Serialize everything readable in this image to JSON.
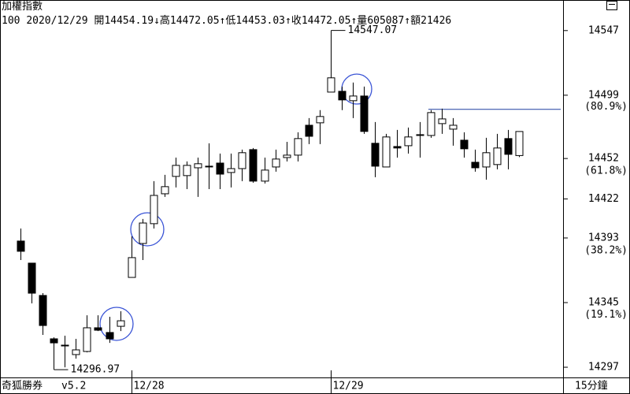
{
  "header": {
    "title": "加權指數",
    "code": "100",
    "date": "2020/12/29",
    "items": [
      {
        "label": "開",
        "value": 14454.19,
        "arrow": "↓"
      },
      {
        "label": "高",
        "value": 14472.05,
        "arrow": "↑"
      },
      {
        "label": "低",
        "value": 14453.03,
        "arrow": "↑"
      },
      {
        "label": "收",
        "value": 14472.05,
        "arrow": "↑"
      },
      {
        "label": "量",
        "value": 605087,
        "arrow": "↑"
      },
      {
        "label": "額",
        "value": 21426
      }
    ]
  },
  "footer": {
    "app": "奇狐勝券",
    "version": "v5.2",
    "period": "15分鐘"
  },
  "chart_data": {
    "type": "candlestick",
    "categories": [
      null,
      null,
      null,
      null,
      null,
      null,
      null,
      null,
      null,
      null,
      "12/28",
      null,
      null,
      null,
      null,
      null,
      null,
      null,
      null,
      null,
      null,
      null,
      null,
      null,
      null,
      null,
      null,
      null,
      "12/29",
      null,
      null,
      null,
      null,
      null,
      null,
      null,
      null,
      null,
      null,
      null,
      null,
      null,
      null,
      null,
      null,
      null
    ],
    "open": [
      14390.7,
      14374.3,
      14350.3,
      14318.1,
      14313.4,
      14306.4,
      14308.7,
      14326.3,
      14322.8,
      14327.4,
      14363.7,
      14388.9,
      14403.6,
      14425.8,
      14438.7,
      14439.3,
      14445.1,
      14446.3,
      14448.6,
      14441.6,
      14444.5,
      14458.6,
      14435.2,
      14445.7,
      14452.7,
      14454.5,
      14476.7,
      14478.5,
      14501.3,
      14501.9,
      14494.9,
      14498.4,
      14463.3,
      14445.7,
      14460.9,
      14461.5,
      14469.1,
      14469.1,
      14477.9,
      14473.8,
      14465.6,
      14449.2,
      14445.7,
      14447.5,
      14466.8,
      14454.19
    ],
    "high": [
      14400.0,
      14374.3,
      14352.0,
      14319.2,
      14320.4,
      14318.1,
      14335.6,
      14335.6,
      14334.5,
      14338.6,
      14394.2,
      14407.1,
      14435.2,
      14439.9,
      14452.7,
      14449.8,
      14452.7,
      14463.3,
      14455.7,
      14455.7,
      14458.6,
      14459.8,
      14452.7,
      14458.6,
      14464.4,
      14471.5,
      14482.0,
      14487.9,
      14547.07,
      14505.4,
      14508.4,
      14505.4,
      14479.1,
      14470.3,
      14473.2,
      14475.0,
      14479.1,
      14487.9,
      14489.0,
      14482.0,
      14471.5,
      14458.6,
      14467.4,
      14470.3,
      14473.2,
      14472.05
    ],
    "low": [
      14376.6,
      14344.4,
      14321.0,
      14314.0,
      14296.97,
      14303.4,
      14308.1,
      14323.9,
      14315.1,
      14323.9,
      14363.7,
      14376.6,
      14400.0,
      14423.5,
      14430.5,
      14429.3,
      14423.5,
      14429.3,
      14429.3,
      14430.5,
      14435.2,
      14434.0,
      14433.4,
      14442.2,
      14449.8,
      14449.8,
      14462.7,
      14462.7,
      14501.3,
      14487.9,
      14482.0,
      14470.3,
      14438.1,
      14445.7,
      14452.7,
      14455.7,
      14452.7,
      14467.4,
      14470.3,
      14461.5,
      14452.7,
      14442.2,
      14436.3,
      14444.0,
      14444.0,
      14453.03
    ],
    "close": [
      14383.1,
      14352.0,
      14328.0,
      14315.1,
      14313.4,
      14309.9,
      14326.3,
      14324.5,
      14318.1,
      14331.5,
      14378.4,
      14404.1,
      14424.6,
      14431.1,
      14446.9,
      14446.9,
      14448.1,
      14446.3,
      14440.4,
      14444.5,
      14456.3,
      14435.2,
      14443.4,
      14451.6,
      14454.5,
      14466.8,
      14468.5,
      14483.2,
      14511.9,
      14495.5,
      14498.4,
      14472.1,
      14446.3,
      14468.0,
      14459.8,
      14468.0,
      14469.7,
      14486.1,
      14481.4,
      14476.7,
      14459.2,
      14445.1,
      14456.3,
      14459.8,
      14455.1,
      14472.05
    ],
    "up_color": "#ffffff",
    "down_color": "#000000",
    "ylim": [
      14290,
      14558
    ],
    "yticks": [
      14547,
      14499,
      14452,
      14422,
      14393,
      14345,
      14297
    ],
    "fib_levels": [
      {
        "value": 80.9,
        "label": "(80.9%)"
      },
      {
        "value": 61.8,
        "label": "(61.8%)"
      },
      {
        "value": 38.2,
        "label": "(38.2%)"
      },
      {
        "value": 19.1,
        "label": "(19.1%)"
      }
    ],
    "high_label": 14547.07,
    "low_label": 14296.97,
    "hline": 14488.5,
    "hline_color": "#1f3fa0"
  }
}
